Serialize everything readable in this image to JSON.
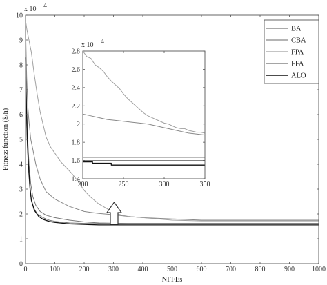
{
  "chart_data": [
    {
      "type": "line",
      "role": "main",
      "xlabel": "NFFEs",
      "ylabel": "Fitness function ($/h)",
      "scale_label": "x 10",
      "scale_exponent": "4",
      "xlim": [
        0,
        1000
      ],
      "ylim": [
        0,
        10
      ],
      "xticks": [
        0,
        100,
        200,
        300,
        400,
        500,
        600,
        700,
        800,
        900,
        1000
      ],
      "yticks": [
        0,
        1,
        2,
        3,
        4,
        5,
        6,
        7,
        8,
        9,
        10
      ],
      "series": [
        {
          "name": "BA",
          "color": "#777777",
          "width": 1.0,
          "points": [
            [
              0,
              8.0
            ],
            [
              4,
              6.3
            ],
            [
              8,
              4.9
            ],
            [
              12,
              4.0
            ],
            [
              18,
              3.2
            ],
            [
              25,
              2.7
            ],
            [
              35,
              2.35
            ],
            [
              50,
              2.1
            ],
            [
              70,
              1.95
            ],
            [
              100,
              1.85
            ],
            [
              150,
              1.75
            ],
            [
              200,
              1.68
            ],
            [
              250,
              1.64
            ],
            [
              300,
              1.63
            ],
            [
              350,
              1.62
            ],
            [
              400,
              1.62
            ],
            [
              600,
              1.62
            ],
            [
              800,
              1.62
            ],
            [
              1000,
              1.62
            ]
          ]
        },
        {
          "name": "CBA",
          "color": "#888888",
          "width": 1.0,
          "points": [
            [
              0,
              9.6
            ],
            [
              4,
              7.5
            ],
            [
              8,
              6.3
            ],
            [
              12,
              5.7
            ],
            [
              18,
              5.0
            ],
            [
              25,
              4.6
            ],
            [
              35,
              4.0
            ],
            [
              50,
              3.4
            ],
            [
              70,
              2.9
            ],
            [
              100,
              2.6
            ],
            [
              150,
              2.3
            ],
            [
              200,
              2.1
            ],
            [
              250,
              2.02
            ],
            [
              300,
              1.97
            ],
            [
              350,
              1.9
            ],
            [
              400,
              1.85
            ],
            [
              500,
              1.8
            ],
            [
              600,
              1.75
            ],
            [
              800,
              1.75
            ],
            [
              1000,
              1.75
            ]
          ]
        },
        {
          "name": "FPA",
          "color": "#a0a0a0",
          "width": 1.0,
          "points": [
            [
              0,
              9.8
            ],
            [
              5,
              9.4
            ],
            [
              10,
              9.1
            ],
            [
              20,
              8.5
            ],
            [
              30,
              7.6
            ],
            [
              40,
              6.8
            ],
            [
              50,
              6.1
            ],
            [
              60,
              5.6
            ],
            [
              70,
              5.1
            ],
            [
              85,
              4.7
            ],
            [
              100,
              4.45
            ],
            [
              120,
              4.1
            ],
            [
              140,
              3.85
            ],
            [
              160,
              3.6
            ],
            [
              180,
              3.3
            ],
            [
              200,
              2.95
            ],
            [
              220,
              2.7
            ],
            [
              250,
              2.4
            ],
            [
              280,
              2.2
            ],
            [
              300,
              2.05
            ],
            [
              330,
              1.95
            ],
            [
              350,
              1.9
            ],
            [
              400,
              1.85
            ],
            [
              450,
              1.8
            ],
            [
              500,
              1.75
            ],
            [
              600,
              1.72
            ],
            [
              800,
              1.72
            ],
            [
              1000,
              1.72
            ]
          ]
        },
        {
          "name": "FFA",
          "color": "#6f6f6f",
          "width": 1.0,
          "points": [
            [
              0,
              7.5
            ],
            [
              3,
              6.0
            ],
            [
              6,
              4.8
            ],
            [
              10,
              3.8
            ],
            [
              15,
              3.0
            ],
            [
              20,
              2.55
            ],
            [
              30,
              2.2
            ],
            [
              40,
              2.0
            ],
            [
              60,
              1.85
            ],
            [
              80,
              1.75
            ],
            [
              100,
              1.7
            ],
            [
              150,
              1.64
            ],
            [
              200,
              1.62
            ],
            [
              300,
              1.6
            ],
            [
              400,
              1.6
            ],
            [
              600,
              1.6
            ],
            [
              800,
              1.6
            ],
            [
              1000,
              1.6
            ]
          ]
        },
        {
          "name": "ALO",
          "color": "#111111",
          "width": 1.3,
          "points": [
            [
              0,
              8.3
            ],
            [
              3,
              6.4
            ],
            [
              6,
              5.0
            ],
            [
              10,
              4.0
            ],
            [
              15,
              3.1
            ],
            [
              20,
              2.55
            ],
            [
              30,
              2.15
            ],
            [
              45,
              1.9
            ],
            [
              60,
              1.78
            ],
            [
              80,
              1.7
            ],
            [
              100,
              1.66
            ],
            [
              150,
              1.6
            ],
            [
              200,
              1.58
            ],
            [
              250,
              1.56
            ],
            [
              300,
              1.56
            ],
            [
              400,
              1.56
            ],
            [
              600,
              1.56
            ],
            [
              800,
              1.56
            ],
            [
              1000,
              1.56
            ]
          ]
        }
      ]
    },
    {
      "type": "line",
      "role": "inset",
      "scale_label": "x 10",
      "scale_exponent": "4",
      "xlim": [
        200,
        350
      ],
      "ylim": [
        1.4,
        2.8
      ],
      "xticks": [
        200,
        250,
        300,
        350
      ],
      "yticks": [
        1.4,
        1.6,
        1.8,
        2.0,
        2.2,
        2.4,
        2.6,
        2.8
      ],
      "ytick_labels": [
        "1.4",
        "1.6",
        "1.8",
        "2",
        "2.2",
        "2.4",
        "2.6",
        "2.8"
      ],
      "series": [
        {
          "name": "BA",
          "color": "#777777",
          "width": 1.0,
          "points": [
            [
              200,
              1.635
            ],
            [
              350,
              1.635
            ]
          ]
        },
        {
          "name": "CBA",
          "color": "#888888",
          "width": 1.0,
          "points": [
            [
              200,
              2.11
            ],
            [
              210,
              2.09
            ],
            [
              220,
              2.07
            ],
            [
              230,
              2.05
            ],
            [
              240,
              2.04
            ],
            [
              250,
              2.03
            ],
            [
              260,
              2.02
            ],
            [
              270,
              2.01
            ],
            [
              280,
              2.0
            ],
            [
              290,
              1.98
            ],
            [
              300,
              1.96
            ],
            [
              310,
              1.94
            ],
            [
              320,
              1.92
            ],
            [
              330,
              1.9
            ],
            [
              340,
              1.89
            ],
            [
              350,
              1.88
            ]
          ]
        },
        {
          "name": "FPA",
          "color": "#a0a0a0",
          "width": 1.0,
          "points": [
            [
              200,
              2.8
            ],
            [
              205,
              2.74
            ],
            [
              210,
              2.72
            ],
            [
              215,
              2.65
            ],
            [
              220,
              2.62
            ],
            [
              225,
              2.58
            ],
            [
              230,
              2.52
            ],
            [
              235,
              2.47
            ],
            [
              240,
              2.43
            ],
            [
              245,
              2.39
            ],
            [
              250,
              2.33
            ],
            [
              255,
              2.28
            ],
            [
              260,
              2.24
            ],
            [
              265,
              2.2
            ],
            [
              270,
              2.16
            ],
            [
              275,
              2.12
            ],
            [
              280,
              2.09
            ],
            [
              285,
              2.07
            ],
            [
              290,
              2.05
            ],
            [
              295,
              2.03
            ],
            [
              300,
              2.01
            ],
            [
              305,
              2.0
            ],
            [
              310,
              1.98
            ],
            [
              315,
              1.96
            ],
            [
              320,
              1.95
            ],
            [
              325,
              1.95
            ],
            [
              330,
              1.93
            ],
            [
              335,
              1.92
            ],
            [
              340,
              1.91
            ],
            [
              345,
              1.91
            ],
            [
              350,
              1.9
            ]
          ]
        },
        {
          "name": "FFA",
          "color": "#6f6f6f",
          "width": 1.0,
          "points": [
            [
              200,
              1.6
            ],
            [
              350,
              1.6
            ]
          ]
        },
        {
          "name": "ALO",
          "color": "#111111",
          "width": 1.3,
          "points": [
            [
              200,
              1.585
            ],
            [
              212,
              1.585
            ],
            [
              212,
              1.57
            ],
            [
              235,
              1.57
            ],
            [
              235,
              1.55
            ],
            [
              350,
              1.55
            ]
          ]
        }
      ]
    }
  ],
  "legend": {
    "placement": "top-right",
    "items": [
      "BA",
      "CBA",
      "FPA",
      "FFA",
      "ALO"
    ]
  }
}
